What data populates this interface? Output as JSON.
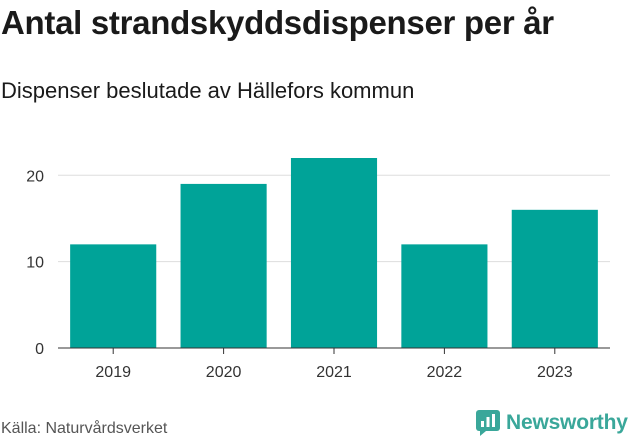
{
  "title": "Antal strandskyddsdispenser per år",
  "subtitle": "Dispenser beslutade av Hällefors kommun",
  "source": "Källa: Naturvårdsverket",
  "brand": "Newsworthy",
  "colors": {
    "bar": "#00a398",
    "grid": "#dddddd",
    "axis": "#333333",
    "brand": "#3aa79a"
  },
  "chart_data": {
    "type": "bar",
    "title": "Antal strandskyddsdispenser per år",
    "subtitle": "Dispenser beslutade av Hällefors kommun",
    "xlabel": "",
    "ylabel": "",
    "categories": [
      "2019",
      "2020",
      "2021",
      "2022",
      "2023"
    ],
    "values": [
      12,
      19,
      22,
      12,
      16
    ],
    "ylim": [
      0,
      22
    ],
    "yticks": [
      0,
      10,
      20
    ],
    "grid": true,
    "legend": "none"
  }
}
